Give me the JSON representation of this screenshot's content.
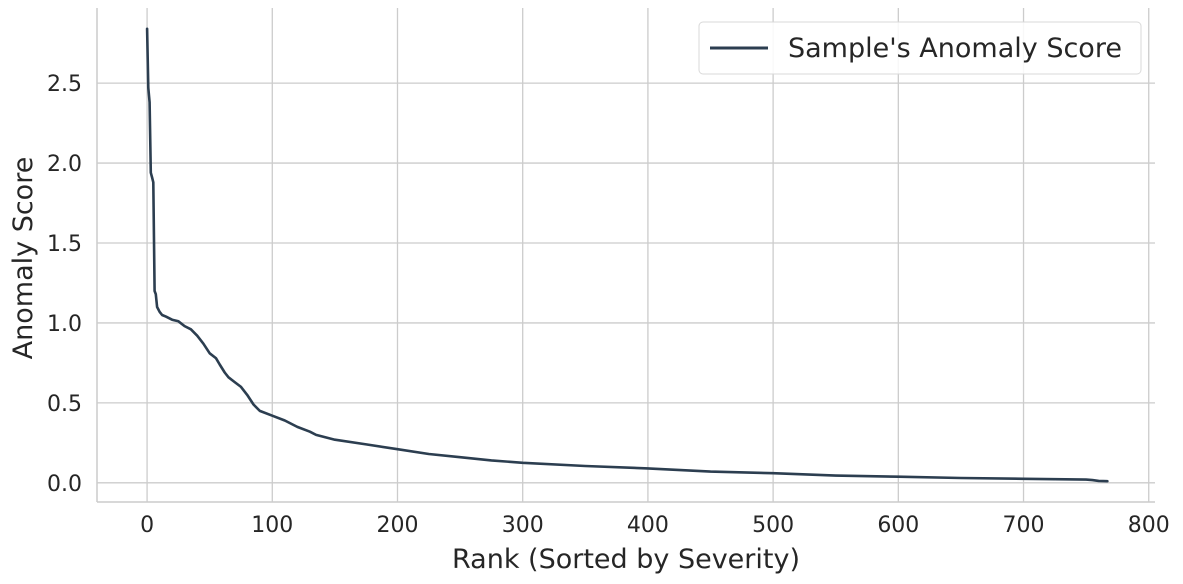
{
  "chart_data": {
    "type": "line",
    "title": "",
    "xlabel": "Rank (Sorted by Severity)",
    "ylabel": "Anomaly Score",
    "xlim": [
      -40,
      805
    ],
    "ylim": [
      -0.12,
      2.97
    ],
    "xticks": [
      0,
      100,
      200,
      300,
      400,
      500,
      600,
      700,
      800
    ],
    "xtick_labels": [
      "0",
      "100",
      "200",
      "300",
      "400",
      "500",
      "600",
      "700",
      "800"
    ],
    "yticks": [
      0.0,
      0.5,
      1.0,
      1.5,
      2.0,
      2.5
    ],
    "ytick_labels": [
      "0.0",
      "0.5",
      "1.0",
      "1.5",
      "2.0",
      "2.5"
    ],
    "grid": true,
    "legend_position": "top-right",
    "colors": {
      "line": "#2c3e50",
      "grid": "#cccccc",
      "axis": "#cccccc",
      "text": "#262626"
    },
    "series": [
      {
        "name": "Sample's Anomaly Score",
        "x": [
          0,
          1,
          2,
          3,
          4,
          5,
          6,
          7,
          8,
          10,
          12,
          15,
          20,
          25,
          30,
          35,
          40,
          45,
          50,
          55,
          58,
          62,
          65,
          70,
          75,
          80,
          85,
          90,
          100,
          110,
          120,
          130,
          135,
          150,
          175,
          200,
          225,
          250,
          275,
          300,
          350,
          400,
          450,
          500,
          550,
          600,
          650,
          700,
          750,
          755,
          760,
          767
        ],
        "y": [
          2.84,
          2.47,
          2.38,
          1.94,
          1.91,
          1.88,
          1.2,
          1.18,
          1.1,
          1.07,
          1.05,
          1.04,
          1.02,
          1.01,
          0.98,
          0.96,
          0.92,
          0.87,
          0.81,
          0.78,
          0.74,
          0.69,
          0.66,
          0.63,
          0.6,
          0.55,
          0.49,
          0.45,
          0.42,
          0.39,
          0.35,
          0.32,
          0.3,
          0.27,
          0.24,
          0.21,
          0.18,
          0.16,
          0.14,
          0.125,
          0.105,
          0.09,
          0.07,
          0.06,
          0.045,
          0.038,
          0.03,
          0.025,
          0.02,
          0.017,
          0.012,
          0.01
        ]
      }
    ]
  }
}
